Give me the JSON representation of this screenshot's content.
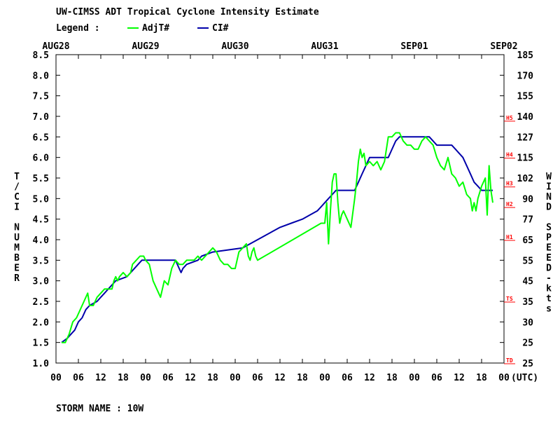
{
  "header": {
    "title": "UW-CIMSS ADT Tropical Cyclone Intensity Estimate",
    "legend_label": "Legend :",
    "legend_items": [
      {
        "name": "AdjT#",
        "color": "#00ff00"
      },
      {
        "name": "CI#",
        "color": "#0000aa"
      }
    ]
  },
  "footer": {
    "storm_label": "STORM NAME : 10W"
  },
  "chart_data": {
    "type": "line",
    "xlim": [
      0,
      120
    ],
    "top_date_labels": [
      {
        "x": 0,
        "label": "AUG28"
      },
      {
        "x": 24,
        "label": "AUG29"
      },
      {
        "x": 48,
        "label": "AUG30"
      },
      {
        "x": 72,
        "label": "AUG31"
      },
      {
        "x": 96,
        "label": "SEP01"
      },
      {
        "x": 120,
        "label": "SEP02"
      }
    ],
    "x_tick_labels": [
      "00",
      "06",
      "12",
      "18",
      "00",
      "06",
      "12",
      "18",
      "00",
      "06",
      "12",
      "18",
      "00",
      "06",
      "12",
      "18",
      "00",
      "06",
      "12",
      "18",
      "00"
    ],
    "x_unit_label": "(UTC)",
    "left_axis": {
      "label": "T/CI NUMBER",
      "ylim": [
        1.0,
        8.5
      ],
      "ticks": [
        "1.0",
        "1.5",
        "2.0",
        "2.5",
        "3.0",
        "3.5",
        "4.0",
        "4.5",
        "5.0",
        "5.5",
        "6.0",
        "6.5",
        "7.0",
        "7.5",
        "8.0",
        "8.5"
      ]
    },
    "right_axis": {
      "label": "WIND SPEED-kts",
      "ticks": [
        {
          "t": 1.0,
          "label": "25"
        },
        {
          "t": 1.5,
          "label": "25"
        },
        {
          "t": 2.0,
          "label": "30"
        },
        {
          "t": 2.5,
          "label": "35"
        },
        {
          "t": 3.0,
          "label": "45"
        },
        {
          "t": 3.5,
          "label": "55"
        },
        {
          "t": 4.0,
          "label": "65"
        },
        {
          "t": 4.5,
          "label": "77"
        },
        {
          "t": 5.0,
          "label": "90"
        },
        {
          "t": 5.5,
          "label": "102"
        },
        {
          "t": 6.0,
          "label": "115"
        },
        {
          "t": 6.5,
          "label": "127"
        },
        {
          "t": 7.0,
          "label": "140"
        },
        {
          "t": 7.5,
          "label": "155"
        },
        {
          "t": 8.0,
          "label": "170"
        },
        {
          "t": 8.5,
          "label": "185"
        }
      ]
    },
    "category_markers": [
      {
        "t": 1.0,
        "label": "TD"
      },
      {
        "t": 2.5,
        "label": "TS"
      },
      {
        "t": 4.0,
        "label": "H1"
      },
      {
        "t": 4.8,
        "label": "H2"
      },
      {
        "t": 5.3,
        "label": "H3"
      },
      {
        "t": 6.0,
        "label": "H4"
      },
      {
        "t": 6.9,
        "label": "H5"
      }
    ],
    "category_color": "#ff0000",
    "series": [
      {
        "name": "AdjT#",
        "color": "#00ff00",
        "points": [
          [
            1.5,
            1.5
          ],
          [
            2.5,
            1.5
          ],
          [
            3.5,
            1.7
          ],
          [
            4.5,
            2.0
          ],
          [
            5.5,
            2.1
          ],
          [
            6.5,
            2.3
          ],
          [
            7.5,
            2.5
          ],
          [
            8.5,
            2.7
          ],
          [
            9,
            2.4
          ],
          [
            10,
            2.4
          ],
          [
            11,
            2.6
          ],
          [
            12,
            2.7
          ],
          [
            13,
            2.8
          ],
          [
            14,
            2.8
          ],
          [
            15,
            2.8
          ],
          [
            15.5,
            3.0
          ],
          [
            16,
            3.1
          ],
          [
            16.5,
            3.0
          ],
          [
            17,
            3.1
          ],
          [
            18,
            3.2
          ],
          [
            19,
            3.1
          ],
          [
            20,
            3.2
          ],
          [
            20.5,
            3.4
          ],
          [
            21.5,
            3.5
          ],
          [
            22.5,
            3.6
          ],
          [
            23.5,
            3.6
          ],
          [
            24,
            3.5
          ],
          [
            25,
            3.4
          ],
          [
            26,
            3.0
          ],
          [
            27,
            2.8
          ],
          [
            28,
            2.6
          ],
          [
            29,
            3.0
          ],
          [
            30,
            2.9
          ],
          [
            31,
            3.3
          ],
          [
            32,
            3.5
          ],
          [
            33,
            3.4
          ],
          [
            34,
            3.4
          ],
          [
            35,
            3.5
          ],
          [
            36,
            3.5
          ],
          [
            37,
            3.5
          ],
          [
            38,
            3.6
          ],
          [
            39,
            3.5
          ],
          [
            40,
            3.6
          ],
          [
            41,
            3.7
          ],
          [
            42,
            3.8
          ],
          [
            43,
            3.7
          ],
          [
            44,
            3.5
          ],
          [
            45,
            3.4
          ],
          [
            46,
            3.4
          ],
          [
            47,
            3.3
          ],
          [
            48,
            3.3
          ],
          [
            49,
            3.7
          ],
          [
            50,
            3.8
          ],
          [
            51,
            3.9
          ],
          [
            51.5,
            3.6
          ],
          [
            52,
            3.5
          ],
          [
            52.5,
            3.7
          ],
          [
            53,
            3.8
          ],
          [
            53.5,
            3.6
          ],
          [
            54,
            3.5
          ],
          [
            71,
            4.4
          ],
          [
            72,
            4.4
          ],
          [
            72.5,
            4.9
          ],
          [
            73,
            3.9
          ],
          [
            73.5,
            4.7
          ],
          [
            74,
            5.4
          ],
          [
            74.5,
            5.6
          ],
          [
            75,
            5.6
          ],
          [
            75.5,
            4.9
          ],
          [
            76,
            4.4
          ],
          [
            76.5,
            4.6
          ],
          [
            77,
            4.7
          ],
          [
            78,
            4.5
          ],
          [
            79,
            4.3
          ],
          [
            80,
            5.0
          ],
          [
            80.5,
            5.4
          ],
          [
            81,
            5.9
          ],
          [
            81.5,
            6.2
          ],
          [
            82,
            6.0
          ],
          [
            82.5,
            6.1
          ],
          [
            83,
            5.8
          ],
          [
            84,
            5.9
          ],
          [
            85,
            5.8
          ],
          [
            86,
            5.9
          ],
          [
            87,
            5.7
          ],
          [
            88,
            5.9
          ],
          [
            89,
            6.5
          ],
          [
            90,
            6.5
          ],
          [
            91,
            6.6
          ],
          [
            92,
            6.6
          ],
          [
            93,
            6.4
          ],
          [
            94,
            6.3
          ],
          [
            95,
            6.3
          ],
          [
            96,
            6.2
          ],
          [
            97,
            6.2
          ],
          [
            98,
            6.4
          ],
          [
            99,
            6.5
          ],
          [
            100,
            6.4
          ],
          [
            101,
            6.3
          ],
          [
            102,
            6.0
          ],
          [
            103,
            5.8
          ],
          [
            104,
            5.7
          ],
          [
            105,
            6.0
          ],
          [
            106,
            5.6
          ],
          [
            107,
            5.5
          ],
          [
            108,
            5.3
          ],
          [
            109,
            5.4
          ],
          [
            110,
            5.1
          ],
          [
            111,
            5.0
          ],
          [
            111.5,
            4.7
          ],
          [
            112,
            4.9
          ],
          [
            112.5,
            4.7
          ],
          [
            113,
            5.0
          ],
          [
            114,
            5.3
          ],
          [
            115,
            5.5
          ],
          [
            115.5,
            4.6
          ],
          [
            116,
            5.8
          ],
          [
            116.5,
            5.2
          ],
          [
            117,
            4.9
          ]
        ]
      },
      {
        "name": "CI#",
        "color": "#0000aa",
        "points": [
          [
            1.5,
            1.5
          ],
          [
            3,
            1.6
          ],
          [
            4,
            1.7
          ],
          [
            5,
            1.8
          ],
          [
            6,
            2.0
          ],
          [
            7,
            2.1
          ],
          [
            8,
            2.3
          ],
          [
            9,
            2.4
          ],
          [
            11,
            2.5
          ],
          [
            12,
            2.6
          ],
          [
            13,
            2.7
          ],
          [
            15,
            2.9
          ],
          [
            16,
            3.0
          ],
          [
            19,
            3.1
          ],
          [
            20,
            3.2
          ],
          [
            21,
            3.3
          ],
          [
            22,
            3.4
          ],
          [
            23,
            3.5
          ],
          [
            32,
            3.5
          ],
          [
            33,
            3.3
          ],
          [
            33.5,
            3.2
          ],
          [
            34,
            3.3
          ],
          [
            35,
            3.4
          ],
          [
            38,
            3.5
          ],
          [
            39,
            3.6
          ],
          [
            42,
            3.7
          ],
          [
            50,
            3.8
          ],
          [
            52,
            3.9
          ],
          [
            54,
            4.0
          ],
          [
            56,
            4.1
          ],
          [
            58,
            4.2
          ],
          [
            60,
            4.3
          ],
          [
            63,
            4.4
          ],
          [
            66,
            4.5
          ],
          [
            68,
            4.6
          ],
          [
            70,
            4.7
          ],
          [
            71,
            4.8
          ],
          [
            72,
            4.9
          ],
          [
            73,
            5.0
          ],
          [
            74,
            5.1
          ],
          [
            75,
            5.2
          ],
          [
            80,
            5.2
          ],
          [
            81,
            5.4
          ],
          [
            82,
            5.6
          ],
          [
            83,
            5.8
          ],
          [
            84,
            6.0
          ],
          [
            89,
            6.0
          ],
          [
            90,
            6.2
          ],
          [
            91,
            6.4
          ],
          [
            92,
            6.5
          ],
          [
            100,
            6.5
          ],
          [
            101,
            6.4
          ],
          [
            102,
            6.3
          ],
          [
            106,
            6.3
          ],
          [
            107,
            6.2
          ],
          [
            108,
            6.1
          ],
          [
            109,
            6.0
          ],
          [
            110,
            5.8
          ],
          [
            111,
            5.6
          ],
          [
            112,
            5.4
          ],
          [
            113,
            5.3
          ],
          [
            114,
            5.2
          ],
          [
            117,
            5.2
          ]
        ]
      }
    ]
  }
}
